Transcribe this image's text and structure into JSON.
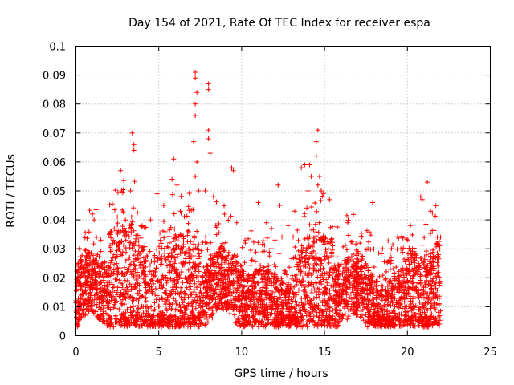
{
  "chart_data": {
    "type": "scatter",
    "title": "Day 154 of 2021, Rate Of TEC Index for receiver espa",
    "xlabel": "GPS time / hours",
    "ylabel": "ROTI / TECUs",
    "xlim": [
      0,
      25
    ],
    "ylim": [
      0,
      0.1
    ],
    "x_ticks": [
      0,
      5,
      10,
      15,
      20,
      25
    ],
    "x_tick_labels": [
      "0",
      "5",
      "10",
      "15",
      "20",
      "25"
    ],
    "y_ticks": [
      0,
      0.01,
      0.02,
      0.03,
      0.04,
      0.05,
      0.06,
      0.07,
      0.08,
      0.09,
      0.1
    ],
    "y_tick_labels": [
      "0",
      "0.01",
      "0.02",
      "0.03",
      "0.04",
      "0.05",
      "0.06",
      "0.07",
      "0.08",
      "0.09",
      "0.1"
    ],
    "grid": true,
    "marker": "+",
    "marker_color": "#ff0000",
    "series": [
      {
        "name": "ROTI",
        "points": [
          [
            0.1,
            0.022
          ],
          [
            0.3,
            0.014
          ],
          [
            0.5,
            0.011
          ],
          [
            0.8,
            0.024
          ],
          [
            1.0,
            0.042
          ],
          [
            1.1,
            0.04
          ],
          [
            1.5,
            0.033
          ],
          [
            2.0,
            0.035
          ],
          [
            2.5,
            0.041
          ],
          [
            2.7,
            0.057
          ],
          [
            3.0,
            0.036
          ],
          [
            3.3,
            0.05
          ],
          [
            3.4,
            0.07
          ],
          [
            3.5,
            0.066
          ],
          [
            3.5,
            0.064
          ],
          [
            4.0,
            0.038
          ],
          [
            4.5,
            0.04
          ],
          [
            4.9,
            0.049
          ],
          [
            5.3,
            0.045
          ],
          [
            5.8,
            0.054
          ],
          [
            5.9,
            0.061
          ],
          [
            6.1,
            0.052
          ],
          [
            6.3,
            0.043
          ],
          [
            6.8,
            0.03
          ],
          [
            7.2,
            0.091
          ],
          [
            7.2,
            0.089
          ],
          [
            7.3,
            0.084
          ],
          [
            7.2,
            0.08
          ],
          [
            7.2,
            0.076
          ],
          [
            7.1,
            0.067
          ],
          [
            7.3,
            0.06
          ],
          [
            7.2,
            0.055
          ],
          [
            7.4,
            0.05
          ],
          [
            7.3,
            0.036
          ],
          [
            7.8,
            0.05
          ],
          [
            8.0,
            0.087
          ],
          [
            8.0,
            0.085
          ],
          [
            8.0,
            0.071
          ],
          [
            8.0,
            0.068
          ],
          [
            8.1,
            0.063
          ],
          [
            8.3,
            0.048
          ],
          [
            9.4,
            0.058
          ],
          [
            9.5,
            0.057
          ],
          [
            9.7,
            0.039
          ],
          [
            10.2,
            0.033
          ],
          [
            11.0,
            0.046
          ],
          [
            11.5,
            0.039
          ],
          [
            11.8,
            0.037
          ],
          [
            12.2,
            0.052
          ],
          [
            12.3,
            0.045
          ],
          [
            12.8,
            0.038
          ],
          [
            13.2,
            0.043
          ],
          [
            13.6,
            0.058
          ],
          [
            13.8,
            0.059
          ],
          [
            14.0,
            0.05
          ],
          [
            14.1,
            0.059
          ],
          [
            14.2,
            0.055
          ],
          [
            14.5,
            0.067
          ],
          [
            14.6,
            0.071
          ],
          [
            14.5,
            0.062
          ],
          [
            14.7,
            0.055
          ],
          [
            14.6,
            0.052
          ],
          [
            14.8,
            0.05
          ],
          [
            15.3,
            0.047
          ],
          [
            16.4,
            0.039
          ],
          [
            17.2,
            0.041
          ],
          [
            17.9,
            0.046
          ],
          [
            18.5,
            0.03
          ],
          [
            19.0,
            0.025
          ],
          [
            19.6,
            0.03
          ],
          [
            20.3,
            0.03
          ],
          [
            20.8,
            0.048
          ],
          [
            20.9,
            0.047
          ],
          [
            21.2,
            0.053
          ],
          [
            21.4,
            0.043
          ],
          [
            21.8,
            0.034
          ],
          [
            22.0,
            0.034
          ]
        ]
      }
    ]
  }
}
